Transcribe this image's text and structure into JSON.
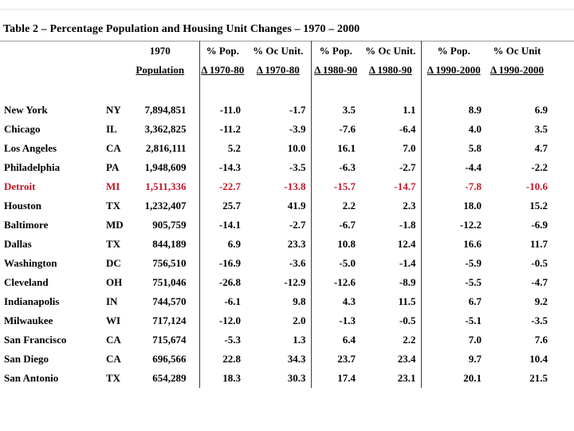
{
  "chart_data": {
    "type": "table",
    "title": "Table 2 – Percentage Population and Housing Unit Changes – 1970 – 2000",
    "headers_line1": [
      "",
      "",
      "1970",
      "% Pop.",
      "% Oc Unit.",
      "% Pop.",
      "% Oc Unit.",
      "% Pop.",
      "% Oc Unit"
    ],
    "headers_line2": [
      "",
      "",
      "Population",
      "Δ 1970-80",
      "Δ 1970-80",
      "Δ 1980-90",
      "Δ 1980-90",
      "Δ 1990-2000",
      "Δ 1990-2000"
    ],
    "columns": [
      "City",
      "State",
      "1970 Population",
      "% Pop. Δ 1970-80",
      "% Oc Unit. Δ 1970-80",
      "% Pop. Δ 1980-90",
      "% Oc Unit. Δ 1980-90",
      "% Pop. Δ 1990-2000",
      "% Oc Unit Δ 1990-2000"
    ],
    "rows": [
      [
        "New York",
        "NY",
        "7,894,851",
        "-11.0",
        "-1.7",
        "3.5",
        "1.1",
        "8.9",
        "6.9"
      ],
      [
        "Chicago",
        "IL",
        "3,362,825",
        "-11.2",
        "-3.9",
        "-7.6",
        "-6.4",
        "4.0",
        "3.5"
      ],
      [
        "Los Angeles",
        "CA",
        "2,816,111",
        "5.2",
        "10.0",
        "16.1",
        "7.0",
        "5.8",
        "4.7"
      ],
      [
        "Philadelphia",
        "PA",
        "1,948,609",
        "-14.3",
        "-3.5",
        "-6.3",
        "-2.7",
        "-4.4",
        "-2.2"
      ],
      [
        "Detroit",
        "MI",
        "1,511,336",
        "-22.7",
        "-13.8",
        "-15.7",
        "-14.7",
        "-7.8",
        "-10.6"
      ],
      [
        "Houston",
        "TX",
        "1,232,407",
        "25.7",
        "41.9",
        "2.2",
        "2.3",
        "18.0",
        "15.2"
      ],
      [
        "Baltimore",
        "MD",
        "905,759",
        "-14.1",
        "-2.7",
        "-6.7",
        "-1.8",
        "-12.2",
        "-6.9"
      ],
      [
        "Dallas",
        "TX",
        "844,189",
        "6.9",
        "23.3",
        "10.8",
        "12.4",
        "16.6",
        "11.7"
      ],
      [
        "Washington",
        "DC",
        "756,510",
        "-16.9",
        "-3.6",
        "-5.0",
        "-1.4",
        "-5.9",
        "-0.5"
      ],
      [
        "Cleveland",
        "OH",
        "751,046",
        "-26.8",
        "-12.9",
        "-12.6",
        "-8.9",
        "-5.5",
        "-4.7"
      ],
      [
        "Indianapolis",
        "IN",
        "744,570",
        "-6.1",
        "9.8",
        "4.3",
        "11.5",
        "6.7",
        "9.2"
      ],
      [
        "Milwaukee",
        "WI",
        "717,124",
        "-12.0",
        "2.0",
        "-1.3",
        "-0.5",
        "-5.1",
        "-3.5"
      ],
      [
        "San Francisco",
        "CA",
        "715,674",
        "-5.3",
        "1.3",
        "6.4",
        "2.2",
        "7.0",
        "7.6"
      ],
      [
        "San Diego",
        "CA",
        "696,566",
        "22.8",
        "34.3",
        "23.7",
        "23.4",
        "9.7",
        "10.4"
      ],
      [
        "San Antonio",
        "TX",
        "654,289",
        "18.3",
        "30.3",
        "17.4",
        "23.1",
        "20.1",
        "21.5"
      ]
    ],
    "highlight_row_index": 4,
    "highlight_row_city": "Detroit"
  },
  "colors": {
    "highlight_row": "#c41425",
    "text": "#000000"
  }
}
